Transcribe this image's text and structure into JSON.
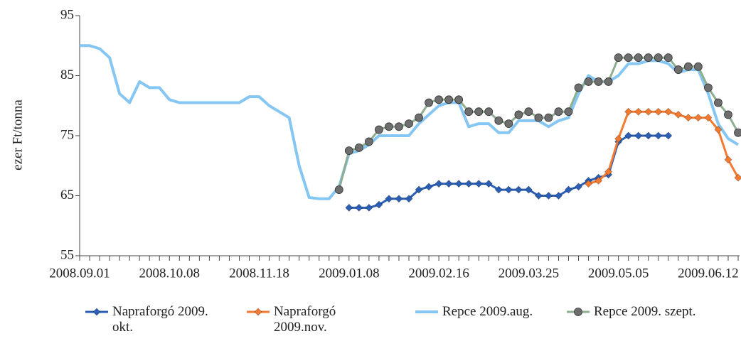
{
  "chart_data": {
    "type": "line",
    "y_label": "ezer Ft/tonna",
    "categories": [
      "2008.09.01",
      null,
      null,
      null,
      null,
      null,
      null,
      null,
      null,
      "2008.10.08",
      null,
      null,
      null,
      null,
      null,
      null,
      null,
      null,
      "2008.11.18",
      null,
      null,
      null,
      null,
      null,
      null,
      null,
      null,
      "2009.01.08",
      null,
      null,
      null,
      null,
      null,
      null,
      null,
      null,
      "2009.02.16",
      null,
      null,
      null,
      null,
      null,
      null,
      null,
      null,
      "2009.03.25",
      null,
      null,
      null,
      null,
      null,
      null,
      null,
      null,
      "2009.05.05",
      null,
      null,
      null,
      null,
      null,
      null,
      null,
      null,
      "2009.06.12",
      null,
      null,
      null
    ],
    "ylim": [
      55,
      95
    ],
    "yticks": [
      55,
      65,
      75,
      85,
      95
    ],
    "grid": false,
    "legend": "bottom",
    "series": [
      {
        "name": "Napraforgó 2009. okt.",
        "color": "#2a5fb5",
        "marker": "diamond",
        "values": [
          null,
          null,
          null,
          null,
          null,
          null,
          null,
          null,
          null,
          null,
          null,
          null,
          null,
          null,
          null,
          null,
          null,
          null,
          null,
          null,
          null,
          null,
          null,
          null,
          null,
          null,
          null,
          63,
          63,
          63,
          63.5,
          64.5,
          64.5,
          64.5,
          66,
          66.5,
          67,
          67,
          67,
          67,
          67,
          67,
          66,
          66,
          66,
          66,
          65,
          65,
          65,
          66,
          66.5,
          67.5,
          68,
          68.5,
          74,
          75,
          75,
          75,
          75,
          75,
          null,
          null,
          null,
          null,
          null,
          null,
          null
        ]
      },
      {
        "name": "Napraforgó 2009.nov.",
        "color": "#f47a30",
        "marker": "diamond",
        "values": [
          null,
          null,
          null,
          null,
          null,
          null,
          null,
          null,
          null,
          null,
          null,
          null,
          null,
          null,
          null,
          null,
          null,
          null,
          null,
          null,
          null,
          null,
          null,
          null,
          null,
          null,
          null,
          null,
          null,
          null,
          null,
          null,
          null,
          null,
          null,
          null,
          null,
          null,
          null,
          null,
          null,
          null,
          null,
          null,
          null,
          null,
          null,
          null,
          null,
          null,
          null,
          67,
          67.5,
          69,
          74.5,
          79,
          79,
          79,
          79,
          79,
          78.5,
          78,
          78,
          78,
          76,
          71,
          68
        ]
      },
      {
        "name": "Repce 2009.aug.",
        "color": "#85c6f2",
        "marker": null,
        "values": [
          90,
          90,
          89.5,
          88,
          82,
          80.5,
          84,
          83,
          83,
          81,
          80.5,
          80.5,
          80.5,
          80.5,
          80.5,
          80.5,
          80.5,
          81.5,
          81.5,
          80,
          79,
          78,
          70,
          64.7,
          64.5,
          64.5,
          66.5,
          72,
          72.5,
          73.5,
          75,
          75,
          75,
          75,
          77,
          78.5,
          80,
          80.5,
          80.5,
          76.5,
          77,
          77,
          75.5,
          75.5,
          77.5,
          77.5,
          77.5,
          76.5,
          77.5,
          78,
          82,
          85,
          84,
          84,
          85,
          87,
          87,
          87.5,
          87.5,
          87,
          85.5,
          86,
          86,
          82,
          77,
          74.5,
          73.5
        ]
      },
      {
        "name": "Repce 2009. szept.",
        "color": "#8fae8f",
        "marker": "circle",
        "values": [
          null,
          null,
          null,
          null,
          null,
          null,
          null,
          null,
          null,
          null,
          null,
          null,
          null,
          null,
          null,
          null,
          null,
          null,
          null,
          null,
          null,
          null,
          null,
          null,
          null,
          null,
          66,
          72.5,
          73,
          74,
          76,
          76.5,
          76.5,
          77,
          78,
          80.5,
          81,
          81,
          81,
          79,
          79,
          79,
          77.5,
          77,
          78.5,
          79,
          78,
          78,
          79,
          79,
          83,
          84,
          84,
          84,
          88,
          88,
          88,
          88,
          88,
          88,
          86,
          86.5,
          86.5,
          83,
          80.5,
          78.5,
          75.5
        ]
      }
    ]
  }
}
